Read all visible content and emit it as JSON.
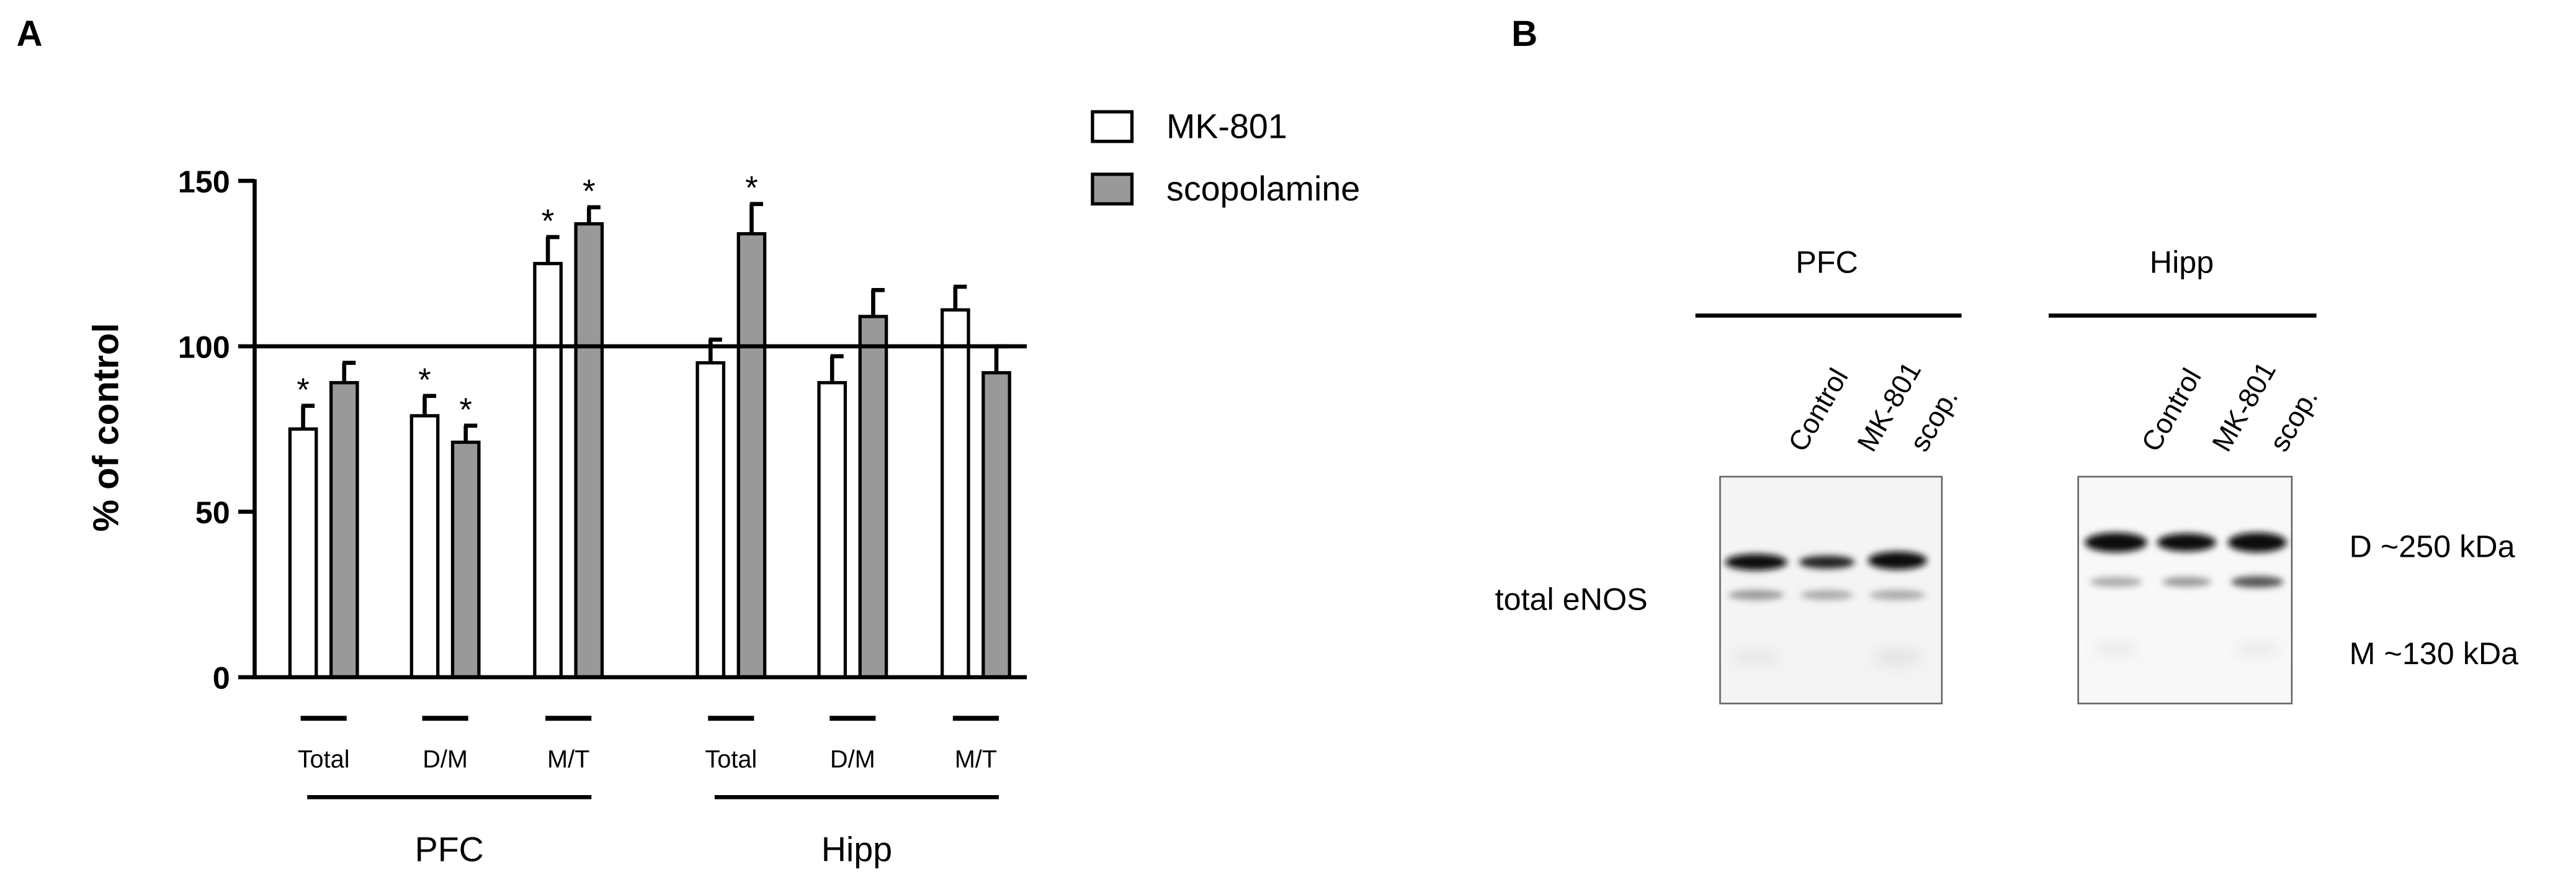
{
  "chart_data": {
    "type": "bar",
    "panel_label": "A",
    "ylabel": "% of control",
    "categories": [
      "Total",
      "D/M",
      "M/T",
      "Total",
      "D/M",
      "M/T"
    ],
    "groups": [
      "PFC",
      "Hipp"
    ],
    "series": [
      {
        "name": "MK-801",
        "color": "#ffffff",
        "values": [
          75,
          79,
          125,
          95,
          89,
          111
        ],
        "errors": [
          7,
          6,
          8,
          7,
          8,
          7
        ],
        "annotations": [
          "*",
          "*",
          "*",
          null,
          null,
          null
        ]
      },
      {
        "name": "scopolamine",
        "color": "#999999",
        "values": [
          89,
          71,
          137,
          134,
          109,
          92
        ],
        "errors": [
          6,
          5,
          5,
          9,
          8,
          8
        ],
        "annotations": [
          null,
          "*",
          "*",
          "*",
          null,
          null
        ]
      }
    ],
    "ylim": [
      0,
      150
    ],
    "yticks": [
      0,
      50,
      100,
      150
    ],
    "reference_line": 100,
    "legend": "top-right"
  },
  "blot": {
    "panel_label": "B",
    "row_label": "total eNOS",
    "panels": [
      {
        "title": "PFC",
        "lanes": [
          "Control",
          "MK-801",
          "scop."
        ]
      },
      {
        "title": "Hipp",
        "lanes": [
          "Control",
          "MK-801",
          "scop."
        ]
      }
    ],
    "markers": [
      "D ~250 kDa",
      "M ~130 kDa"
    ]
  }
}
